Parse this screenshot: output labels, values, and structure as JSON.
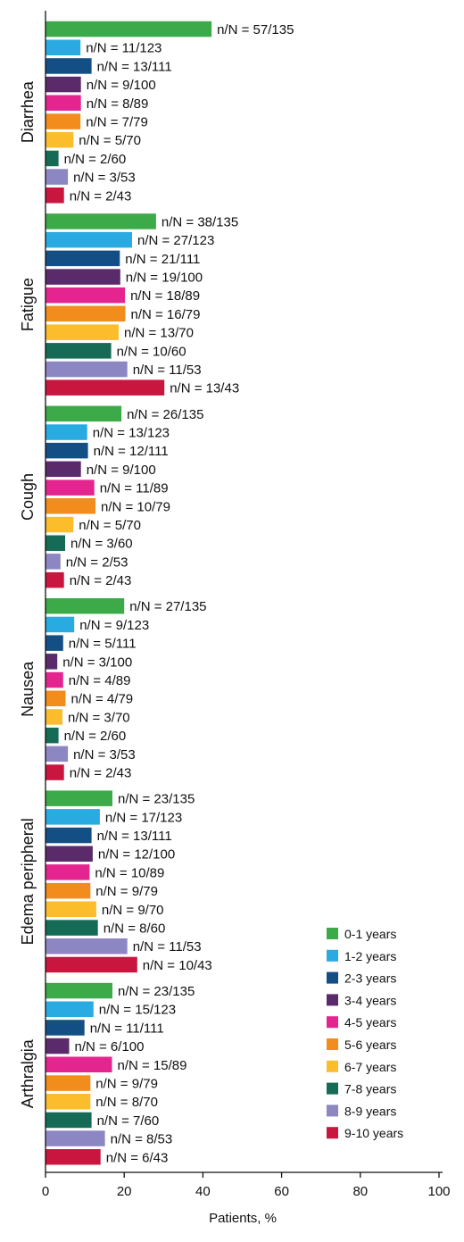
{
  "chart_data": {
    "type": "bar",
    "orientation": "horizontal",
    "title": "",
    "xlabel": "Patients, %",
    "ylabel": "",
    "xlim": [
      0,
      100
    ],
    "xticks": [
      0,
      20,
      40,
      60,
      80,
      100
    ],
    "grid": false,
    "legend_position": "bottom-right",
    "series": [
      {
        "name": "0-1 years",
        "color": "#3daa4a"
      },
      {
        "name": "1-2 years",
        "color": "#29aae1"
      },
      {
        "name": "2-3 years",
        "color": "#134f85"
      },
      {
        "name": "3-4 years",
        "color": "#5a2a6b"
      },
      {
        "name": "4-5 years",
        "color": "#e4258f"
      },
      {
        "name": "5-6 years",
        "color": "#f28c1c"
      },
      {
        "name": "6-7 years",
        "color": "#fbbd2c"
      },
      {
        "name": "7-8 years",
        "color": "#156b56"
      },
      {
        "name": "8-9 years",
        "color": "#8c86c2"
      },
      {
        "name": "9-10 years",
        "color": "#c8163e"
      }
    ],
    "categories": [
      "Diarrhea",
      "Fatigue",
      "Cough",
      "Nausea",
      "Edema peripheral",
      "Arthralgia"
    ],
    "groups": [
      {
        "category": "Diarrhea",
        "values": [
          42.2,
          8.9,
          11.7,
          9.0,
          9.0,
          8.9,
          7.1,
          3.3,
          5.7,
          4.7
        ],
        "labels": [
          "n/N = 57/135",
          "n/N = 11/123",
          "n/N = 13/111",
          "n/N = 9/100",
          "n/N = 8/89",
          "n/N = 7/79",
          "n/N = 5/70",
          "n/N = 2/60",
          "n/N = 3/53",
          "n/N = 2/43"
        ]
      },
      {
        "category": "Fatigue",
        "values": [
          28.1,
          22.0,
          18.9,
          19.0,
          20.2,
          20.3,
          18.6,
          16.7,
          20.8,
          30.2
        ],
        "labels": [
          "n/N = 38/135",
          "n/N = 27/123",
          "n/N = 21/111",
          "n/N = 19/100",
          "n/N = 18/89",
          "n/N = 16/79",
          "n/N = 13/70",
          "n/N = 10/60",
          "n/N = 11/53",
          "n/N = 13/43"
        ]
      },
      {
        "category": "Cough",
        "values": [
          19.3,
          10.6,
          10.8,
          9.0,
          12.4,
          12.7,
          7.1,
          5.0,
          3.8,
          4.7
        ],
        "labels": [
          "n/N = 26/135",
          "n/N = 13/123",
          "n/N = 12/111",
          "n/N = 9/100",
          "n/N = 11/89",
          "n/N = 10/79",
          "n/N = 5/70",
          "n/N = 3/60",
          "n/N = 2/53",
          "n/N = 2/43"
        ]
      },
      {
        "category": "Nausea",
        "values": [
          20.0,
          7.3,
          4.5,
          3.0,
          4.5,
          5.1,
          4.3,
          3.3,
          5.7,
          4.7
        ],
        "labels": [
          "n/N = 27/135",
          "n/N = 9/123",
          "n/N = 5/111",
          "n/N = 3/100",
          "n/N = 4/89",
          "n/N = 4/79",
          "n/N = 3/70",
          "n/N = 2/60",
          "n/N = 3/53",
          "n/N = 2/43"
        ]
      },
      {
        "category": "Edema peripheral",
        "values": [
          17.0,
          13.8,
          11.7,
          12.0,
          11.2,
          11.4,
          12.9,
          13.3,
          20.8,
          23.3
        ],
        "labels": [
          "n/N = 23/135",
          "n/N = 17/123",
          "n/N = 13/111",
          "n/N = 12/100",
          "n/N = 10/89",
          "n/N = 9/79",
          "n/N = 9/70",
          "n/N = 8/60",
          "n/N = 11/53",
          "n/N = 10/43"
        ]
      },
      {
        "category": "Arthralgia",
        "values": [
          17.0,
          12.2,
          9.9,
          6.0,
          16.9,
          11.4,
          11.4,
          11.7,
          15.1,
          14.0
        ],
        "labels": [
          "n/N = 23/135",
          "n/N = 15/123",
          "n/N = 11/111",
          "n/N = 6/100",
          "n/N = 15/89",
          "n/N = 9/79",
          "n/N = 8/70",
          "n/N = 7/60",
          "n/N = 8/53",
          "n/N = 6/43"
        ]
      }
    ]
  }
}
